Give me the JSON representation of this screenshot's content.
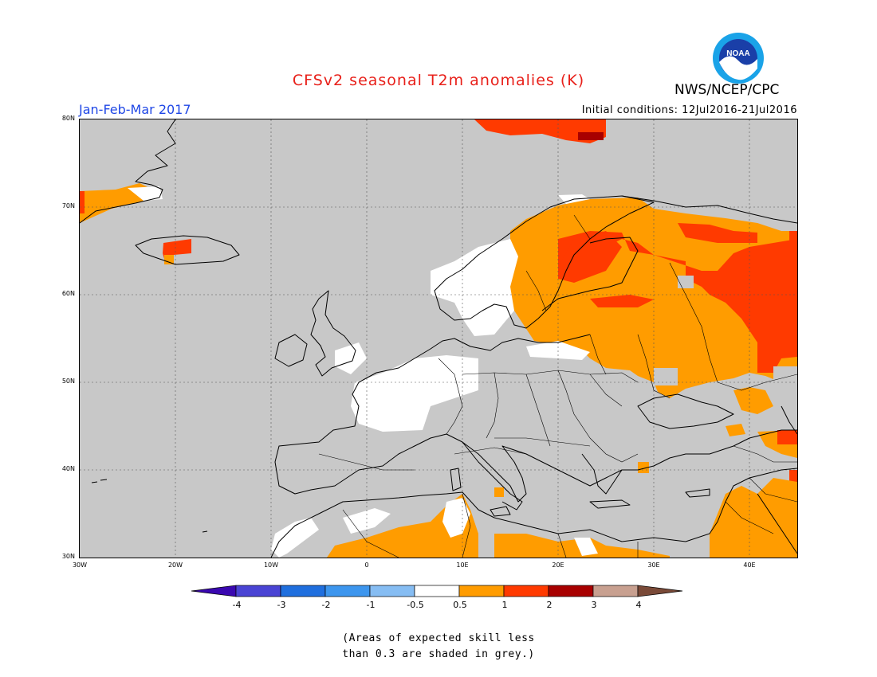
{
  "title": "CFSv2 seasonal T2m anomalies (K)",
  "organization": "NWS/NCEP/CPC",
  "logo_text": "NOAA",
  "period": "Jan-Feb-Mar 2017",
  "initial_conditions": "Initial conditions: 12Jul2016-21Jul2016",
  "map": {
    "lon_range": [
      -30,
      45
    ],
    "lat_range": [
      30,
      80
    ],
    "lat_labels": [
      "80N",
      "70N",
      "60N",
      "50N",
      "40N",
      "30N"
    ],
    "lon_labels": [
      "30W",
      "20W",
      "10W",
      "0",
      "10E",
      "20E",
      "30E",
      "40E"
    ],
    "grey_meaning": "low skill",
    "regions": [
      {
        "category": "0.5 to 1",
        "area": "Scandinavia and western Russia"
      },
      {
        "category": "1 to 2",
        "area": "Finland and central Russia"
      },
      {
        "category": "2 to 3",
        "area": "Svalbard"
      },
      {
        "category": "-0.5 to 0.5",
        "area": "France, southern Sweden, Low Countries"
      },
      {
        "category": "0.5 to 1",
        "area": "North Africa and Middle East"
      }
    ]
  },
  "colorbar": {
    "labels": [
      "-4",
      "-3",
      "-2",
      "-1",
      "-0.5",
      "0.5",
      "1",
      "2",
      "3",
      "4"
    ],
    "colors": [
      "#3a08b0",
      "#4a44d4",
      "#1f6fde",
      "#3d96ee",
      "#86bdf3",
      "#ffffff",
      "#ff9c00",
      "#ff3a00",
      "#a80000",
      "#c8a090",
      "#7a4a38"
    ]
  },
  "footnote_line1": "(Areas of expected skill less",
  "footnote_line2": "than 0.3 are shaded in grey.)",
  "colors": {
    "title": "#e8201a",
    "period": "#1f47e6",
    "grey": "#c8c8c8",
    "orange": "#ff9c00",
    "red": "#ff3a00",
    "darkred": "#a80000",
    "white": "#ffffff"
  }
}
